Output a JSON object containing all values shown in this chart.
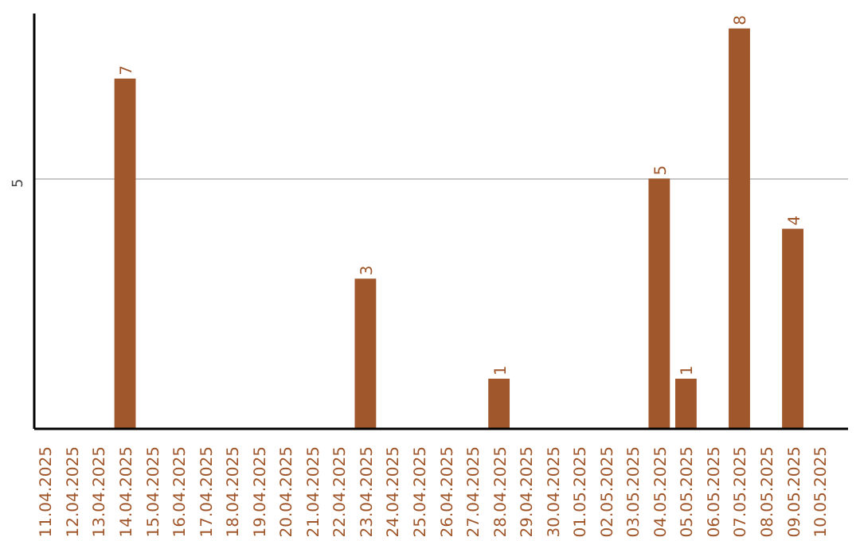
{
  "chart_data": {
    "type": "bar",
    "categories": [
      "11.04.2025",
      "12.04.2025",
      "13.04.2025",
      "14.04.2025",
      "15.04.2025",
      "16.04.2025",
      "17.04.2025",
      "18.04.2025",
      "19.04.2025",
      "20.04.2025",
      "21.04.2025",
      "22.04.2025",
      "23.04.2025",
      "24.04.2025",
      "25.04.2025",
      "26.04.2025",
      "27.04.2025",
      "28.04.2025",
      "29.04.2025",
      "30.04.2025",
      "01.05.2025",
      "02.05.2025",
      "03.05.2025",
      "04.05.2025",
      "05.05.2025",
      "06.05.2025",
      "07.05.2025",
      "08.05.2025",
      "09.05.2025",
      "10.05.2025"
    ],
    "values": [
      0,
      0,
      0,
      7,
      0,
      0,
      0,
      0,
      0,
      0,
      0,
      0,
      3,
      0,
      0,
      0,
      0,
      1,
      0,
      0,
      0,
      0,
      0,
      5,
      1,
      0,
      8,
      0,
      4,
      0
    ],
    "value_labels": [
      null,
      null,
      null,
      "7",
      null,
      null,
      null,
      null,
      null,
      null,
      null,
      null,
      "3",
      null,
      null,
      null,
      null,
      "1",
      null,
      null,
      null,
      null,
      null,
      "5",
      "1",
      null,
      "8",
      null,
      "4",
      null
    ],
    "color": "#a0572b",
    "ylim": [
      0,
      8.3
    ],
    "yticks": [
      5
    ],
    "grid": "y"
  }
}
